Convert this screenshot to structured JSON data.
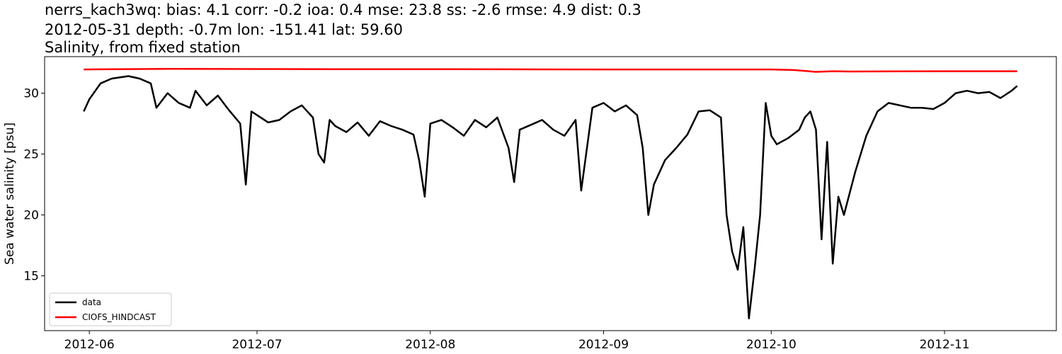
{
  "chart_data": {
    "type": "line",
    "title": "nerrs_kach3wq: bias: 4.1  corr: -0.2  ioa: 0.4  mse: 23.8  ss: -2.6  rmse: 4.9  dist: 0.3",
    "subtitle": "2012-05-31 depth: -0.7m lon: -151.41 lat: 59.60",
    "subtitle2": "Salinity, from fixed station",
    "xlabel": "",
    "ylabel": "Sea water salinity [psu]",
    "xlim": [
      "2012-05-24",
      "2012-11-21"
    ],
    "ylim": [
      10.5,
      33.0
    ],
    "xticks": [
      "2012-06",
      "2012-07",
      "2012-08",
      "2012-09",
      "2012-10",
      "2012-11"
    ],
    "yticks": [
      15,
      20,
      25,
      30
    ],
    "grid": false,
    "legend_position": "lower-left",
    "series": [
      {
        "name": "data",
        "color": "#000000",
        "x": [
          "2012-05-31",
          "2012-06-01",
          "2012-06-03",
          "2012-06-05",
          "2012-06-08",
          "2012-06-10",
          "2012-06-12",
          "2012-06-13",
          "2012-06-15",
          "2012-06-17",
          "2012-06-19",
          "2012-06-20",
          "2012-06-22",
          "2012-06-24",
          "2012-06-26",
          "2012-06-28",
          "2012-06-29",
          "2012-06-30",
          "2012-07-01",
          "2012-07-03",
          "2012-07-05",
          "2012-07-07",
          "2012-07-09",
          "2012-07-11",
          "2012-07-12",
          "2012-07-13",
          "2012-07-14",
          "2012-07-15",
          "2012-07-17",
          "2012-07-19",
          "2012-07-21",
          "2012-07-23",
          "2012-07-25",
          "2012-07-27",
          "2012-07-29",
          "2012-07-30",
          "2012-07-31",
          "2012-08-01",
          "2012-08-03",
          "2012-08-05",
          "2012-08-07",
          "2012-08-09",
          "2012-08-11",
          "2012-08-13",
          "2012-08-15",
          "2012-08-16",
          "2012-08-17",
          "2012-08-19",
          "2012-08-21",
          "2012-08-23",
          "2012-08-25",
          "2012-08-27",
          "2012-08-28",
          "2012-08-30",
          "2012-09-01",
          "2012-09-03",
          "2012-09-05",
          "2012-09-07",
          "2012-09-08",
          "2012-09-09",
          "2012-09-10",
          "2012-09-12",
          "2012-09-14",
          "2012-09-16",
          "2012-09-18",
          "2012-09-20",
          "2012-09-22",
          "2012-09-23",
          "2012-09-24",
          "2012-09-25",
          "2012-09-26",
          "2012-09-27",
          "2012-09-28",
          "2012-09-29",
          "2012-09-30",
          "2012-10-01",
          "2012-10-02",
          "2012-10-04",
          "2012-10-06",
          "2012-10-07",
          "2012-10-08",
          "2012-10-09",
          "2012-10-10",
          "2012-10-11",
          "2012-10-12",
          "2012-10-13",
          "2012-10-14",
          "2012-10-16",
          "2012-10-18",
          "2012-10-20",
          "2012-10-22",
          "2012-10-24",
          "2012-10-26",
          "2012-10-28",
          "2012-10-30",
          "2012-11-01",
          "2012-11-03",
          "2012-11-05",
          "2012-11-07",
          "2012-11-09",
          "2012-11-11",
          "2012-11-13",
          "2012-11-14"
        ],
        "y": [
          28.5,
          29.5,
          30.8,
          31.2,
          31.4,
          31.2,
          30.8,
          28.8,
          30.0,
          29.2,
          28.8,
          30.2,
          29.0,
          29.8,
          28.6,
          27.5,
          22.5,
          28.5,
          28.2,
          27.6,
          27.8,
          28.5,
          29.0,
          28.0,
          25.0,
          24.3,
          27.8,
          27.3,
          26.8,
          27.6,
          26.5,
          27.7,
          27.3,
          27.0,
          26.6,
          24.5,
          21.5,
          27.5,
          27.8,
          27.2,
          26.5,
          27.8,
          27.2,
          28.0,
          25.5,
          22.7,
          27.0,
          27.4,
          27.8,
          27.0,
          26.5,
          27.8,
          22.0,
          28.8,
          29.2,
          28.5,
          29.0,
          28.2,
          25.5,
          20.0,
          22.5,
          24.5,
          25.5,
          26.6,
          28.5,
          28.6,
          28.0,
          20.0,
          17.0,
          15.5,
          19.0,
          11.5,
          15.5,
          20.0,
          29.2,
          26.5,
          25.8,
          26.3,
          27.0,
          28.0,
          28.5,
          27.0,
          18.0,
          26.0,
          16.0,
          21.5,
          20.0,
          23.5,
          26.5,
          28.5,
          29.2,
          29.0,
          28.8,
          28.8,
          28.7,
          29.2,
          30.0,
          30.2,
          30.0,
          30.1,
          29.6,
          30.2,
          30.6
        ]
      },
      {
        "name": "CIOFS_HINDCAST",
        "color": "#ff0000",
        "x": [
          "2012-05-31",
          "2012-06-15",
          "2012-07-01",
          "2012-07-15",
          "2012-08-01",
          "2012-08-15",
          "2012-09-01",
          "2012-09-15",
          "2012-10-01",
          "2012-10-05",
          "2012-10-09",
          "2012-10-12",
          "2012-10-15",
          "2012-11-01",
          "2012-11-14"
        ],
        "y": [
          31.95,
          32.0,
          31.98,
          31.97,
          31.97,
          31.96,
          31.95,
          31.95,
          31.95,
          31.9,
          31.75,
          31.8,
          31.78,
          31.8,
          31.8
        ]
      }
    ]
  }
}
